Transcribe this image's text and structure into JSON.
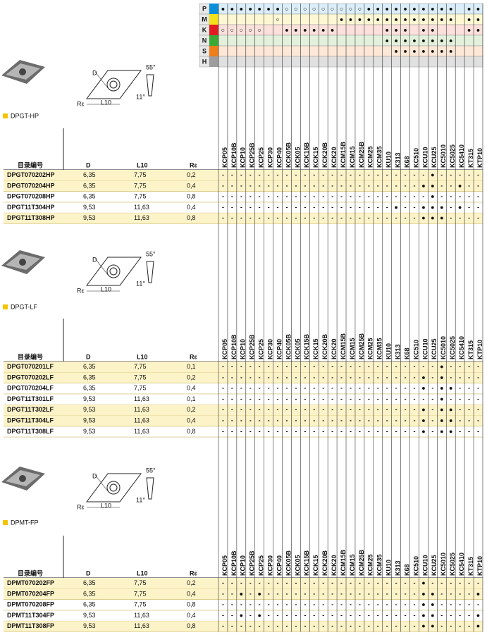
{
  "materials": [
    {
      "code": "P",
      "color": "#0a8fd8",
      "tint": "#dbeefa",
      "cells": [
        "●",
        "●",
        "●",
        "●",
        "●",
        "●",
        "●",
        "○",
        "○",
        "○",
        "○",
        "○",
        "○",
        "○",
        "○",
        "○",
        "●",
        "●",
        "●",
        "●",
        "●",
        "●",
        "●",
        "●",
        "●",
        "●",
        null,
        "●",
        "●"
      ]
    },
    {
      "code": "M",
      "color": "#f5e11b",
      "tint": "#fdf7d4",
      "cells": [
        null,
        null,
        null,
        null,
        null,
        null,
        "○",
        null,
        null,
        null,
        null,
        null,
        null,
        "●",
        "●",
        "●",
        "●",
        "●",
        "●",
        "●",
        "●",
        "●",
        "●",
        "●",
        "●",
        "●",
        null,
        "●",
        "●"
      ]
    },
    {
      "code": "K",
      "color": "#e01b22",
      "tint": "#fbe0dc",
      "cells": [
        "○",
        "○",
        "○",
        "○",
        "○",
        null,
        null,
        "●",
        "●",
        "●",
        "●",
        "●",
        "●",
        null,
        null,
        null,
        null,
        null,
        "●",
        "●",
        "●",
        null,
        "●",
        "●",
        null,
        null,
        null,
        "●",
        "●"
      ]
    },
    {
      "code": "N",
      "color": "#3aaa35",
      "tint": "#e3f1dc",
      "cells": [
        null,
        null,
        null,
        null,
        null,
        null,
        null,
        null,
        null,
        null,
        null,
        null,
        null,
        null,
        null,
        null,
        null,
        null,
        "●",
        "●",
        "●",
        "●",
        "●",
        "●",
        "●",
        "●",
        null,
        null,
        null
      ]
    },
    {
      "code": "S",
      "color": "#ef7d1a",
      "tint": "#fde7d6",
      "cells": [
        null,
        null,
        null,
        null,
        null,
        null,
        null,
        null,
        null,
        null,
        null,
        null,
        null,
        null,
        null,
        null,
        null,
        null,
        null,
        "●",
        "●",
        "●",
        "●",
        "●",
        "●",
        "●",
        null,
        null,
        null
      ]
    },
    {
      "code": "H",
      "color": "#9d9d9d",
      "tint": "#e0e0e0",
      "cells": [
        null,
        null,
        null,
        null,
        null,
        null,
        null,
        null,
        null,
        null,
        null,
        null,
        null,
        null,
        null,
        null,
        null,
        null,
        null,
        null,
        null,
        null,
        null,
        null,
        null,
        null,
        null,
        null,
        null
      ]
    }
  ],
  "grades": [
    "KCP05",
    "KCP10B",
    "KCP10",
    "KCP25B",
    "KCP25",
    "KCP30",
    "KCP40",
    "KCK05B",
    "KCK05",
    "KCK15B",
    "KCK15",
    "KCK20B",
    "KCK20",
    "KCM15B",
    "KCM15",
    "KCM25B",
    "KCM25",
    "KCM35",
    "KU10",
    "K313",
    "K68",
    "KC510",
    "KCU10",
    "KCU25",
    "KC5010",
    "KC5025",
    "KC5410",
    "KT315",
    "KTP10"
  ],
  "sections": [
    {
      "title": "DPGT-HP",
      "diagram": {
        "d": "D",
        "angle": "55°",
        "clearance": "11°",
        "radius": "Rε",
        "length": "L10"
      },
      "columns": [
        "目录编号",
        "D",
        "L10",
        "Rε"
      ],
      "rows": [
        {
          "code": "DPGT070202HP",
          "d": "6,35",
          "l10": "7,75",
          "r": "0,2",
          "cells": [
            "-",
            "-",
            "-",
            "-",
            "-",
            "-",
            "-",
            "-",
            "-",
            "-",
            "-",
            "-",
            "-",
            "-",
            "-",
            "-",
            "-",
            "-",
            "-",
            "-",
            "-",
            "-",
            "-",
            "●",
            "-",
            "-",
            "-",
            "-",
            "-"
          ]
        },
        {
          "code": "DPGT070204HP",
          "d": "6,35",
          "l10": "7,75",
          "r": "0,4",
          "cells": [
            "-",
            "-",
            "-",
            "-",
            "-",
            "-",
            "-",
            "-",
            "-",
            "-",
            "-",
            "-",
            "-",
            "-",
            "-",
            "-",
            "-",
            "-",
            "-",
            "-",
            "-",
            "-",
            "●",
            "●",
            "-",
            "-",
            "●",
            "-",
            "-"
          ]
        },
        {
          "code": "DPGT070208HP",
          "d": "6,35",
          "l10": "7,75",
          "r": "0,8",
          "cells": [
            "-",
            "-",
            "-",
            "-",
            "-",
            "-",
            "-",
            "-",
            "-",
            "-",
            "-",
            "-",
            "-",
            "-",
            "-",
            "-",
            "-",
            "-",
            "-",
            "-",
            "-",
            "-",
            "-",
            "●",
            "-",
            "-",
            "-",
            "-",
            "-"
          ]
        },
        {
          "code": "DPGT11T304HP",
          "d": "9,53",
          "l10": "11,63",
          "r": "0,4",
          "cells": [
            "-",
            "-",
            "-",
            "-",
            "-",
            "-",
            "-",
            "-",
            "-",
            "-",
            "-",
            "-",
            "-",
            "-",
            "-",
            "-",
            "-",
            "-",
            "-",
            "●",
            "-",
            "-",
            "●",
            "●",
            "●",
            "-",
            "●",
            "-",
            "-"
          ]
        },
        {
          "code": "DPGT11T308HP",
          "d": "9,53",
          "l10": "11,63",
          "r": "0,8",
          "cells": [
            "-",
            "-",
            "-",
            "-",
            "-",
            "-",
            "-",
            "-",
            "-",
            "-",
            "-",
            "-",
            "-",
            "-",
            "-",
            "-",
            "-",
            "-",
            "-",
            "-",
            "-",
            "-",
            "●",
            "●",
            "●",
            "-",
            "-",
            "-",
            "-"
          ]
        }
      ]
    },
    {
      "title": "DPGT-LF",
      "diagram": {
        "d": "D",
        "angle": "55°",
        "clearance": "11°",
        "radius": "Rε",
        "length": "L10"
      },
      "columns": [
        "目录编号",
        "D",
        "L10",
        "Rε"
      ],
      "rows": [
        {
          "code": "DPGT070201LF",
          "d": "6,35",
          "l10": "7,75",
          "r": "0,1",
          "cells": [
            "-",
            "-",
            "-",
            "-",
            "-",
            "-",
            "-",
            "-",
            "-",
            "-",
            "-",
            "-",
            "-",
            "-",
            "-",
            "-",
            "-",
            "-",
            "-",
            "-",
            "-",
            "-",
            "-",
            "-",
            "●",
            "-",
            "-",
            "-",
            "-"
          ]
        },
        {
          "code": "DPGT070202LF",
          "d": "6,35",
          "l10": "7,75",
          "r": "0,2",
          "cells": [
            "-",
            "-",
            "-",
            "-",
            "-",
            "-",
            "-",
            "-",
            "-",
            "-",
            "-",
            "-",
            "-",
            "-",
            "-",
            "-",
            "-",
            "-",
            "-",
            "-",
            "-",
            "-",
            "●",
            "-",
            "●",
            "-",
            "-",
            "-",
            "-"
          ]
        },
        {
          "code": "DPGT070204LF",
          "d": "6,35",
          "l10": "7,75",
          "r": "0,4",
          "cells": [
            "-",
            "-",
            "-",
            "-",
            "-",
            "-",
            "-",
            "-",
            "-",
            "-",
            "-",
            "-",
            "-",
            "-",
            "-",
            "-",
            "-",
            "-",
            "-",
            "-",
            "-",
            "-",
            "●",
            "-",
            "●",
            "●",
            "-",
            "-",
            "-"
          ]
        },
        {
          "code": "DPGT11T301LF",
          "d": "9,53",
          "l10": "11,63",
          "r": "0,1",
          "cells": [
            "-",
            "-",
            "-",
            "-",
            "-",
            "-",
            "-",
            "-",
            "-",
            "-",
            "-",
            "-",
            "-",
            "-",
            "-",
            "-",
            "-",
            "-",
            "-",
            "-",
            "-",
            "-",
            "-",
            "-",
            "●",
            "-",
            "-",
            "-",
            "-"
          ]
        },
        {
          "code": "DPGT11T302LF",
          "d": "9,53",
          "l10": "11,63",
          "r": "0,2",
          "cells": [
            "-",
            "-",
            "-",
            "-",
            "-",
            "-",
            "-",
            "-",
            "-",
            "-",
            "-",
            "-",
            "-",
            "-",
            "-",
            "-",
            "-",
            "-",
            "-",
            "-",
            "-",
            "-",
            "●",
            "-",
            "●",
            "●",
            "-",
            "-",
            "-"
          ]
        },
        {
          "code": "DPGT11T304LF",
          "d": "9,53",
          "l10": "11,63",
          "r": "0,4",
          "cells": [
            "-",
            "-",
            "-",
            "-",
            "-",
            "-",
            "-",
            "-",
            "-",
            "-",
            "-",
            "-",
            "-",
            "-",
            "-",
            "-",
            "-",
            "-",
            "-",
            "-",
            "-",
            "-",
            "●",
            "-",
            "●",
            "●",
            "-",
            "-",
            "-"
          ]
        },
        {
          "code": "DPGT11T308LF",
          "d": "9,53",
          "l10": "11,63",
          "r": "0,8",
          "cells": [
            "-",
            "-",
            "-",
            "-",
            "-",
            "-",
            "-",
            "-",
            "-",
            "-",
            "-",
            "-",
            "-",
            "-",
            "-",
            "-",
            "-",
            "-",
            "-",
            "-",
            "-",
            "-",
            "●",
            "-",
            "●",
            "●",
            "-",
            "-",
            "-"
          ]
        }
      ]
    },
    {
      "title": "DPMT-FP",
      "diagram": {
        "d": "D",
        "angle": "55°",
        "clearance": "11°",
        "radius": "Rε",
        "length": "L10"
      },
      "columns": [
        "目录编号",
        "D",
        "L10",
        "Rε"
      ],
      "rows": [
        {
          "code": "DPMT070202FP",
          "d": "6,35",
          "l10": "7,75",
          "r": "0,2",
          "cells": [
            "-",
            "-",
            "-",
            "-",
            "-",
            "-",
            "-",
            "-",
            "-",
            "-",
            "-",
            "-",
            "-",
            "-",
            "-",
            "-",
            "-",
            "-",
            "-",
            "-",
            "-",
            "-",
            "●",
            "-",
            "-",
            "-",
            "-",
            "-",
            "-"
          ]
        },
        {
          "code": "DPMT070204FP",
          "d": "6,35",
          "l10": "7,75",
          "r": "0,4",
          "cells": [
            "-",
            "-",
            "●",
            "-",
            "●",
            "-",
            "-",
            "-",
            "-",
            "-",
            "-",
            "-",
            "-",
            "-",
            "-",
            "-",
            "-",
            "-",
            "-",
            "-",
            "-",
            "-",
            "●",
            "●",
            "-",
            "-",
            "-",
            "-",
            "●"
          ]
        },
        {
          "code": "DPMT070208FP",
          "d": "6,35",
          "l10": "7,75",
          "r": "0,8",
          "cells": [
            "-",
            "-",
            "-",
            "-",
            "-",
            "-",
            "-",
            "-",
            "-",
            "-",
            "-",
            "-",
            "-",
            "-",
            "-",
            "-",
            "-",
            "-",
            "-",
            "-",
            "-",
            "-",
            "●",
            "●",
            "-",
            "-",
            "-",
            "-",
            "-"
          ]
        },
        {
          "code": "DPMT11T304FP",
          "d": "9,53",
          "l10": "11,63",
          "r": "0,4",
          "cells": [
            "-",
            "-",
            "●",
            "-",
            "●",
            "-",
            "-",
            "-",
            "-",
            "-",
            "-",
            "-",
            "-",
            "-",
            "-",
            "-",
            "-",
            "-",
            "-",
            "-",
            "-",
            "-",
            "●",
            "●",
            "-",
            "-",
            "-",
            "-",
            "●"
          ]
        },
        {
          "code": "DPMT11T308FP",
          "d": "9,53",
          "l10": "11,63",
          "r": "0,8",
          "cells": [
            "-",
            "-",
            "-",
            "-",
            "-",
            "-",
            "-",
            "-",
            "-",
            "-",
            "-",
            "-",
            "-",
            "-",
            "-",
            "-",
            "-",
            "-",
            "-",
            "-",
            "-",
            "-",
            "●",
            "●",
            "-",
            "-",
            "-",
            "-",
            "●"
          ]
        }
      ]
    }
  ]
}
